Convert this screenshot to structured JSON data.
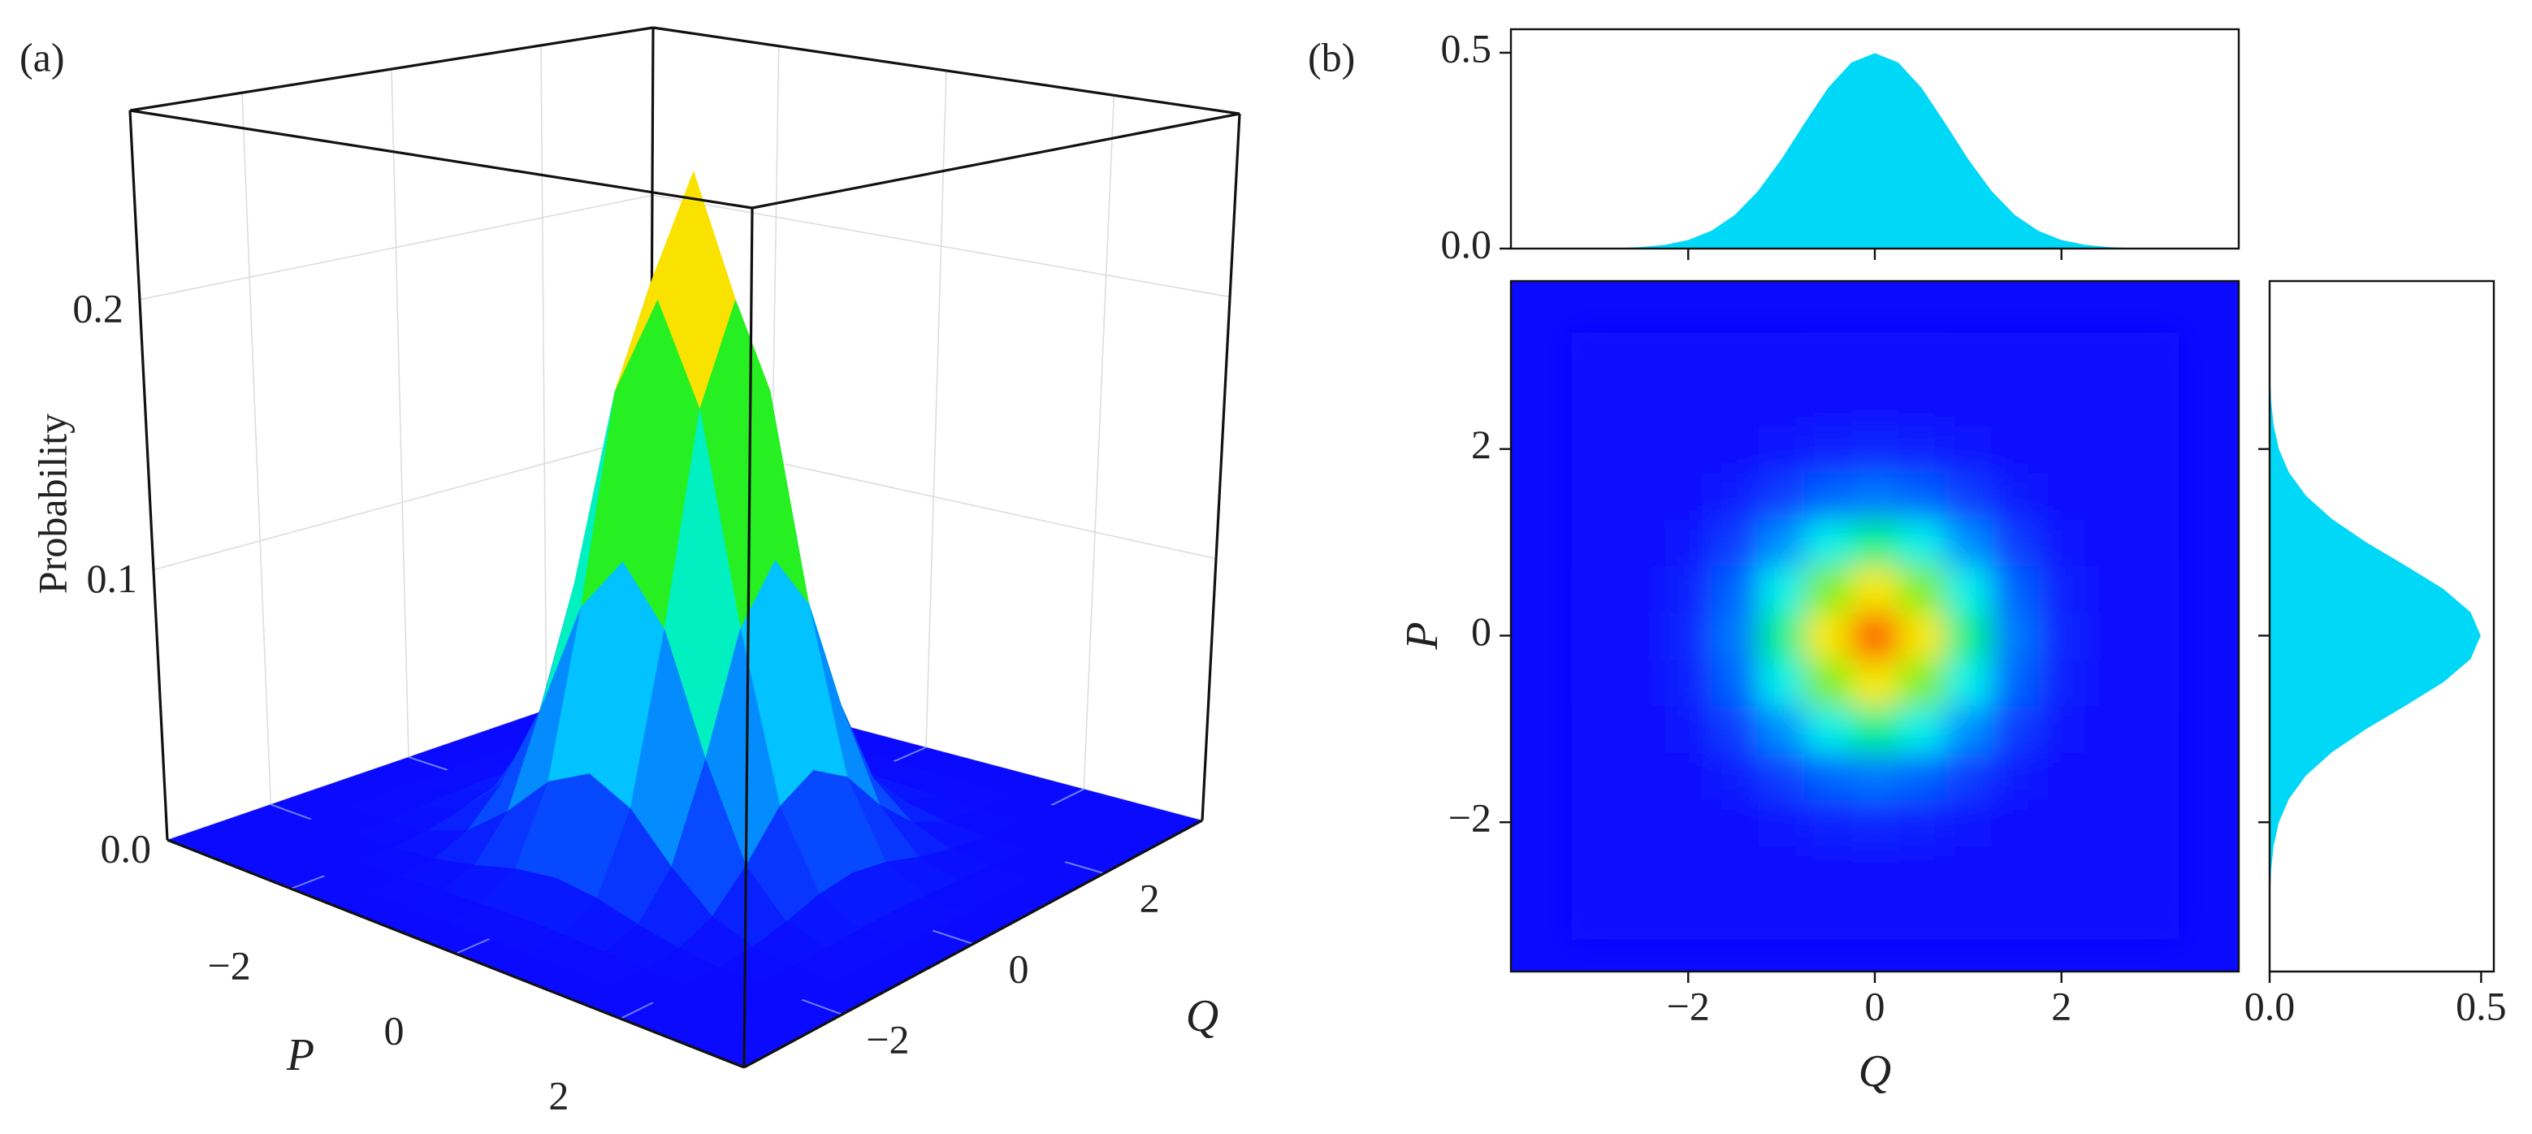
{
  "chart_data": [
    {
      "type": "surface",
      "label": "(a)",
      "zlabel": "Probability",
      "xlabel": "Q",
      "ylabel": "P",
      "xlim": [
        -3.5,
        3.5
      ],
      "ylim": [
        -3.5,
        3.5
      ],
      "zlim": [
        0,
        0.27
      ],
      "xticks": [
        {
          "value": -2,
          "label": "−2"
        },
        0,
        2
      ],
      "yticks": [
        {
          "value": -2,
          "label": "−2"
        },
        0,
        2
      ],
      "zticks": [
        {
          "value": 0,
          "label": "0.0"
        },
        0.1,
        0.2
      ],
      "colormap": "jet",
      "grid": true,
      "x": [
        -3,
        -2.5,
        -2,
        -1.5,
        -1,
        -0.5,
        0,
        0.5,
        1,
        1.5,
        2,
        2.5,
        3
      ],
      "y": [
        -3,
        -2.5,
        -2,
        -1.5,
        -1,
        -0.5,
        0,
        0.5,
        1,
        1.5,
        2,
        2.5,
        3
      ],
      "z": [
        [
          0,
          0,
          0,
          0,
          0.0001,
          0.0002,
          0.0002,
          0.0002,
          0.0001,
          0,
          0,
          0,
          0
        ],
        [
          0,
          0,
          0.0001,
          0.0003,
          0.0009,
          0.0016,
          0.0019,
          0.0016,
          0.0009,
          0.0003,
          0.0001,
          0,
          0
        ],
        [
          0,
          0.0001,
          0.0005,
          0.0019,
          0.005,
          0.009,
          0.0109,
          0.009,
          0.005,
          0.0019,
          0.0005,
          0.0001,
          0
        ],
        [
          0,
          0.0003,
          0.0019,
          0.0074,
          0.0196,
          0.0352,
          0.0428,
          0.0352,
          0.0196,
          0.0074,
          0.0019,
          0.0003,
          0
        ],
        [
          0.0001,
          0.0009,
          0.005,
          0.0196,
          0.0522,
          0.0938,
          0.114,
          0.0938,
          0.0522,
          0.0196,
          0.005,
          0.0009,
          0.0001
        ],
        [
          0.0002,
          0.0016,
          0.009,
          0.0352,
          0.0938,
          0.1686,
          0.2049,
          0.1686,
          0.0938,
          0.0352,
          0.009,
          0.0016,
          0.0002
        ],
        [
          0.0002,
          0.0019,
          0.0109,
          0.0428,
          0.114,
          0.2049,
          0.249,
          0.2049,
          0.114,
          0.0428,
          0.0109,
          0.0019,
          0.0002
        ],
        [
          0.0002,
          0.0016,
          0.009,
          0.0352,
          0.0938,
          0.1686,
          0.2049,
          0.1686,
          0.0938,
          0.0352,
          0.009,
          0.0016,
          0.0002
        ],
        [
          0.0001,
          0.0009,
          0.005,
          0.0196,
          0.0522,
          0.0938,
          0.114,
          0.0938,
          0.0522,
          0.0196,
          0.005,
          0.0009,
          0.0001
        ],
        [
          0,
          0.0003,
          0.0019,
          0.0074,
          0.0196,
          0.0352,
          0.0428,
          0.0352,
          0.0196,
          0.0074,
          0.0019,
          0.0003,
          0
        ],
        [
          0,
          0.0001,
          0.0005,
          0.0019,
          0.005,
          0.009,
          0.0109,
          0.009,
          0.005,
          0.0019,
          0.0005,
          0.0001,
          0
        ],
        [
          0,
          0,
          0.0001,
          0.0003,
          0.0009,
          0.0016,
          0.0019,
          0.0016,
          0.0009,
          0.0003,
          0.0001,
          0,
          0
        ],
        [
          0,
          0,
          0,
          0,
          0.0001,
          0.0002,
          0.0002,
          0.0002,
          0.0001,
          0,
          0,
          0,
          0
        ]
      ]
    },
    {
      "type": "heatmap",
      "label": "(b)",
      "xlabel": "Q",
      "ylabel": "P",
      "xlim": [
        -3.9,
        3.9
      ],
      "ylim": [
        -3.6,
        3.8
      ],
      "zlim": [
        0,
        0.27
      ],
      "colormap": "jet",
      "xticks": [
        {
          "value": -2,
          "label": "−2"
        },
        0,
        2
      ],
      "yticks": [
        {
          "value": -2,
          "label": "−2"
        },
        0,
        2
      ],
      "x": [
        -3,
        -2.5,
        -2,
        -1.5,
        -1,
        -0.5,
        0,
        0.5,
        1,
        1.5,
        2,
        2.5,
        3
      ],
      "y": [
        -3,
        -2.5,
        -2,
        -1.5,
        -1,
        -0.5,
        0,
        0.5,
        1,
        1.5,
        2,
        2.5,
        3
      ],
      "z": [
        [
          0,
          0,
          0,
          0,
          0.0001,
          0.0002,
          0.0002,
          0.0002,
          0.0001,
          0,
          0,
          0,
          0
        ],
        [
          0,
          0,
          0.0001,
          0.0003,
          0.0009,
          0.0016,
          0.0019,
          0.0016,
          0.0009,
          0.0003,
          0.0001,
          0,
          0
        ],
        [
          0,
          0.0001,
          0.0005,
          0.0019,
          0.005,
          0.009,
          0.0109,
          0.009,
          0.005,
          0.0019,
          0.0005,
          0.0001,
          0
        ],
        [
          0,
          0.0003,
          0.0019,
          0.0074,
          0.0196,
          0.0352,
          0.0428,
          0.0352,
          0.0196,
          0.0074,
          0.0019,
          0.0003,
          0
        ],
        [
          0.0001,
          0.0009,
          0.005,
          0.0196,
          0.0522,
          0.0938,
          0.114,
          0.0938,
          0.0522,
          0.0196,
          0.005,
          0.0009,
          0.0001
        ],
        [
          0.0002,
          0.0016,
          0.009,
          0.0352,
          0.0938,
          0.1686,
          0.2049,
          0.1686,
          0.0938,
          0.0352,
          0.009,
          0.0016,
          0.0002
        ],
        [
          0.0002,
          0.0019,
          0.0109,
          0.0428,
          0.114,
          0.2049,
          0.249,
          0.2049,
          0.114,
          0.0428,
          0.0109,
          0.0019,
          0.0002
        ],
        [
          0.0002,
          0.0016,
          0.009,
          0.0352,
          0.0938,
          0.1686,
          0.2049,
          0.1686,
          0.0938,
          0.0352,
          0.009,
          0.0016,
          0.0002
        ],
        [
          0.0001,
          0.0009,
          0.005,
          0.0196,
          0.0522,
          0.0938,
          0.114,
          0.0938,
          0.0522,
          0.0196,
          0.005,
          0.0009,
          0.0001
        ],
        [
          0,
          0.0003,
          0.0019,
          0.0074,
          0.0196,
          0.0352,
          0.0428,
          0.0352,
          0.0196,
          0.0074,
          0.0019,
          0.0003,
          0
        ],
        [
          0,
          0.0001,
          0.0005,
          0.0019,
          0.005,
          0.009,
          0.0109,
          0.009,
          0.005,
          0.0019,
          0.0005,
          0.0001,
          0
        ],
        [
          0,
          0,
          0.0001,
          0.0003,
          0.0009,
          0.0016,
          0.0019,
          0.0016,
          0.0009,
          0.0003,
          0.0001,
          0,
          0
        ],
        [
          0,
          0,
          0,
          0,
          0.0001,
          0.0002,
          0.0002,
          0.0002,
          0.0001,
          0,
          0,
          0,
          0
        ]
      ]
    },
    {
      "type": "area",
      "orientation": "vertical",
      "color": "#00d8f8",
      "xlim": [
        -3.9,
        3.9
      ],
      "ylim": [
        0,
        0.56
      ],
      "xticks": [
        -2,
        0,
        2
      ],
      "yticks": [
        {
          "value": 0,
          "label": "0.0"
        },
        0.5
      ],
      "x": [
        -3.5,
        -3.25,
        -3,
        -2.75,
        -2.5,
        -2.25,
        -2,
        -1.75,
        -1.5,
        -1.25,
        -1,
        -0.75,
        -0.5,
        -0.25,
        0,
        0.25,
        0.5,
        0.75,
        1,
        1.25,
        1.5,
        1.75,
        2,
        2.25,
        2.5,
        2.75,
        3,
        3.25,
        3.5
      ],
      "values": [
        0,
        0.0001,
        0.0004,
        0.0014,
        0.0038,
        0.0096,
        0.0219,
        0.0456,
        0.0858,
        0.1472,
        0.2285,
        0.3216,
        0.4107,
        0.4752,
        0.499,
        0.4752,
        0.4107,
        0.3216,
        0.2285,
        0.1472,
        0.0858,
        0.0456,
        0.0219,
        0.0096,
        0.0038,
        0.0014,
        0.0004,
        0.0001,
        0
      ]
    },
    {
      "type": "area",
      "orientation": "horizontal",
      "color": "#00d8f8",
      "xlim": [
        0,
        0.53
      ],
      "ylim": [
        -3.6,
        3.8
      ],
      "xticks": [
        {
          "value": 0,
          "label": "0.0"
        },
        0.5
      ],
      "yticks": [
        -2,
        0,
        2
      ],
      "y": [
        -3.5,
        -3.25,
        -3,
        -2.75,
        -2.5,
        -2.25,
        -2,
        -1.75,
        -1.5,
        -1.25,
        -1,
        -0.75,
        -0.5,
        -0.25,
        0,
        0.25,
        0.5,
        0.75,
        1,
        1.25,
        1.5,
        1.75,
        2,
        2.25,
        2.5,
        2.75,
        3,
        3.25,
        3.5
      ],
      "values": [
        0,
        0.0001,
        0.0004,
        0.0014,
        0.0038,
        0.0096,
        0.0219,
        0.0456,
        0.0858,
        0.1472,
        0.2285,
        0.3216,
        0.4107,
        0.4752,
        0.499,
        0.4752,
        0.4107,
        0.3216,
        0.2285,
        0.1472,
        0.0858,
        0.0456,
        0.0219,
        0.0096,
        0.0038,
        0.0014,
        0.0004,
        0.0001,
        0
      ]
    }
  ]
}
